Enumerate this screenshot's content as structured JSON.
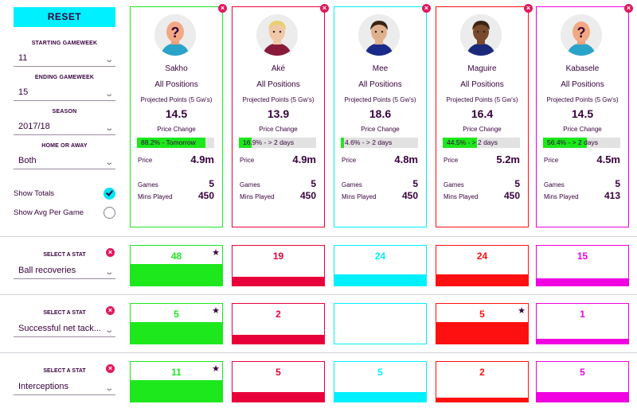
{
  "sidebar": {
    "reset_label": "RESET",
    "filters": [
      {
        "label": "STARTING GAMEWEEK",
        "value": "11"
      },
      {
        "label": "ENDING GAMEWEEK",
        "value": "15"
      },
      {
        "label": "SEASON",
        "value": "2017/18"
      },
      {
        "label": "HOME OR AWAY",
        "value": "Both"
      }
    ],
    "show_totals_label": "Show Totals",
    "show_totals_checked": true,
    "show_avg_label": "Show Avg Per Game",
    "show_avg_checked": false,
    "select_stat_label": "SELECT A STAT",
    "chevron": "chevron-down-icon"
  },
  "labels": {
    "projected": "Projected Points (5 Gw's)",
    "price_change": "Price Change",
    "price": "Price",
    "games": "Games",
    "mins": "Mins Played"
  },
  "colors": {
    "green": "#1ce81c",
    "red": "#e8003a",
    "cyan": "#00f0ff",
    "scarlet": "#ff1010",
    "magenta": "#f000e0",
    "accent": "#00f0ff",
    "brand_text": "#37003c",
    "close": "#e0185c"
  },
  "players": [
    {
      "name": "Sakho",
      "position": "All Positions",
      "projected": "14.5",
      "price_change_text": "88.2% - Tomorrow",
      "price_change_pct": 88.2,
      "price": "4.9m",
      "games": "5",
      "mins": "450",
      "color": "green",
      "avatar": "placeholder"
    },
    {
      "name": "Aké",
      "position": "All Positions",
      "projected": "13.9",
      "price_change_text": "16.9% - > 2 days",
      "price_change_pct": 16.9,
      "price": "4.9m",
      "games": "5",
      "mins": "450",
      "color": "red",
      "avatar": "player-photo"
    },
    {
      "name": "Mee",
      "position": "All Positions",
      "projected": "18.6",
      "price_change_text": "4.6% - > 2 days",
      "price_change_pct": 4.6,
      "price": "4.8m",
      "games": "5",
      "mins": "450",
      "color": "cyan",
      "avatar": "player-photo"
    },
    {
      "name": "Maguire",
      "position": "All Positions",
      "projected": "16.4",
      "price_change_text": "44.5% - > 2 days",
      "price_change_pct": 44.5,
      "price": "5.2m",
      "games": "5",
      "mins": "450",
      "color": "scarlet",
      "avatar": "player-photo"
    },
    {
      "name": "Kabasele",
      "position": "All Positions",
      "projected": "14.5",
      "price_change_text": "56.4% - > 2 days",
      "price_change_pct": 56.4,
      "price": "4.5m",
      "games": "5",
      "mins": "413",
      "color": "magenta",
      "avatar": "placeholder"
    }
  ],
  "stats": [
    {
      "name": "Ball recoveries",
      "values": [
        "48",
        "19",
        "24",
        "24",
        "15"
      ],
      "fill_fraction": [
        0.55,
        0.22,
        0.28,
        0.28,
        0.18
      ],
      "starred": [
        0
      ]
    },
    {
      "name": "Successful net tack...",
      "values": [
        "5",
        "2",
        "",
        "5",
        "1"
      ],
      "fill_fraction": [
        0.55,
        0.22,
        0,
        0.55,
        0.12
      ],
      "starred": [
        0,
        3
      ]
    },
    {
      "name": "Interceptions",
      "values": [
        "11",
        "5",
        "5",
        "2",
        "5"
      ],
      "fill_fraction": [
        0.55,
        0.25,
        0.25,
        0.1,
        0.25
      ],
      "starred": [
        0
      ]
    }
  ]
}
